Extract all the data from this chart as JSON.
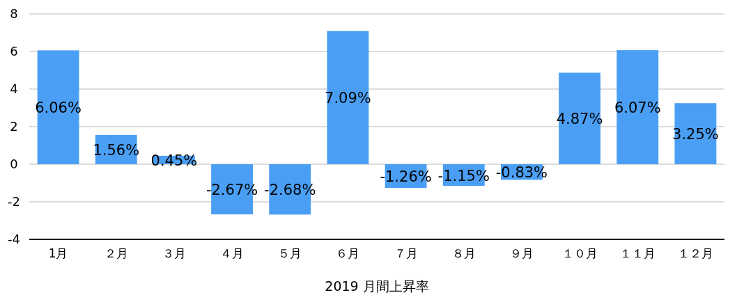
{
  "chart_data": {
    "type": "bar",
    "xlabel": "2019 月間上昇率",
    "categories": [
      "1月",
      "２月",
      "３月",
      "４月",
      "５月",
      "６月",
      "７月",
      "８月",
      "９月",
      "１０月",
      "１１月",
      "１２月"
    ],
    "values": [
      6.06,
      1.56,
      0.45,
      -2.67,
      -2.68,
      7.09,
      -1.26,
      -1.15,
      -0.83,
      4.87,
      6.07,
      3.25
    ],
    "value_labels": [
      "6.06%",
      "1.56%",
      "0.45%",
      "-2.67%",
      "-2.68%",
      "7.09%",
      "-1.26%",
      "-1.15%",
      "-0.83%",
      "4.87%",
      "6.07%",
      "3.25%"
    ],
    "color": "#4a9ff5",
    "ylim": [
      -4,
      8
    ],
    "yticks": [
      -4,
      -2,
      0,
      2,
      4,
      6,
      8
    ],
    "grid": "y"
  }
}
